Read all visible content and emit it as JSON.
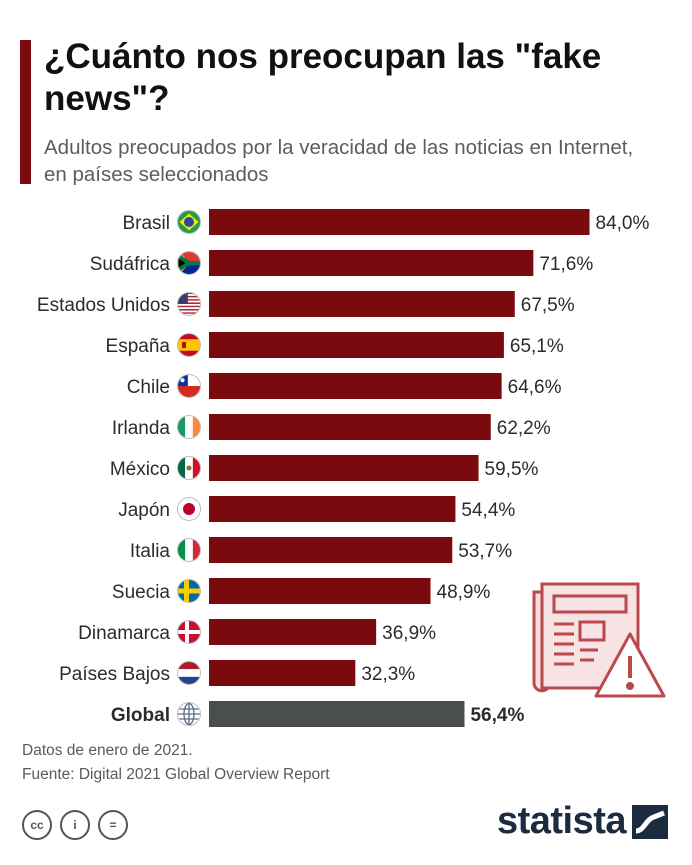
{
  "header": {
    "title": "¿Cuánto nos preocupan las \"fake news\"?",
    "subtitle": "Adultos preocupados por la veracidad de las noticias en Internet, en países seleccionados"
  },
  "colors": {
    "accent": "#7a0c10",
    "bar": "#7b0a0f",
    "global_bar": "#4a4f4e",
    "brand": "#1b2b40",
    "icon": "#b9494d"
  },
  "chart_data": {
    "type": "bar",
    "orientation": "horizontal",
    "categories": [
      "Brasil",
      "Sudáfrica",
      "Estados Unidos",
      "España",
      "Chile",
      "Irlanda",
      "México",
      "Japón",
      "Italia",
      "Suecia",
      "Dinamarca",
      "Países Bajos",
      "Global"
    ],
    "values": [
      84.0,
      71.6,
      67.5,
      65.1,
      64.6,
      62.2,
      59.5,
      54.4,
      53.7,
      48.9,
      36.9,
      32.3,
      56.4
    ],
    "data_labels": [
      "84,0%",
      "71,6%",
      "67,5%",
      "65,1%",
      "64,6%",
      "62,2%",
      "59,5%",
      "54,4%",
      "53,7%",
      "48,9%",
      "36,9%",
      "32,3%",
      "56,4%"
    ],
    "flags": [
      "brazil-flag-icon",
      "south-africa-flag-icon",
      "usa-flag-icon",
      "spain-flag-icon",
      "chile-flag-icon",
      "ireland-flag-icon",
      "mexico-flag-icon",
      "japan-flag-icon",
      "italy-flag-icon",
      "sweden-flag-icon",
      "denmark-flag-icon",
      "netherlands-flag-icon",
      "globe-icon"
    ],
    "highlight": "Global",
    "xlim": [
      0,
      100
    ],
    "grid": false,
    "legend": "none"
  },
  "footer": {
    "note": "Datos de enero de 2021.",
    "source": "Fuente: Digital 2021 Global Overview Report",
    "brand": "statista",
    "license_icons": [
      "cc-icon",
      "by-icon",
      "nd-icon"
    ],
    "license_symbols": [
      "cc",
      "i",
      "="
    ]
  }
}
